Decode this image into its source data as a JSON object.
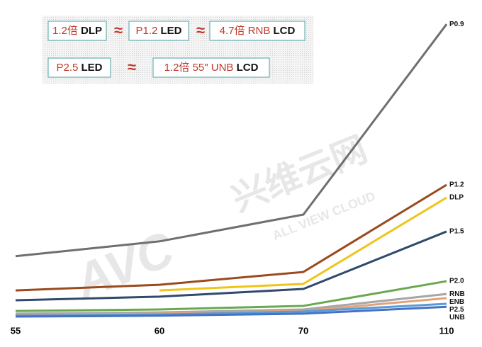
{
  "chart_data": {
    "type": "line",
    "categories": [
      "55",
      "60",
      "70",
      "110"
    ],
    "ylim": [
      0,
      100
    ],
    "series": [
      {
        "name": "P0.9",
        "color": "#6f6f6f",
        "values": [
          21,
          26,
          35,
          99
        ]
      },
      {
        "name": "P1.2",
        "color": "#9a4a1c",
        "values": [
          9.5,
          11.4,
          15.7,
          45
        ]
      },
      {
        "name": "DLP",
        "color": "#f0c419",
        "values": [
          null,
          9.5,
          11.7,
          40.7
        ]
      },
      {
        "name": "P1.5",
        "color": "#2f4a6d",
        "values": [
          6.2,
          7.4,
          10,
          29.3
        ]
      },
      {
        "name": "P2.0",
        "color": "#6aa84f",
        "values": [
          2.6,
          3.1,
          4.3,
          12.6
        ]
      },
      {
        "name": "RNB",
        "color": "#a6a6a6",
        "values": [
          1.7,
          2.1,
          3.1,
          8.3
        ]
      },
      {
        "name": "ENB",
        "color": "#e3a27a",
        "values": [
          1.2,
          1.7,
          2.6,
          6.9
        ]
      },
      {
        "name": "P2.5",
        "color": "#5b9bd5",
        "values": [
          1,
          1.4,
          2.4,
          5
        ]
      },
      {
        "name": "UNB",
        "color": "#4472c4",
        "values": [
          0.7,
          1,
          1.7,
          4
        ]
      }
    ],
    "annotations": [
      {
        "red": "1.2倍",
        "black": "DLP"
      },
      {
        "red": "P1.2",
        "black": "LED"
      },
      {
        "red": "4.7倍 RNB",
        "black": "LCD"
      },
      {
        "red": "P2.5",
        "black": "LED"
      },
      {
        "red": "1.2倍 55\" UNB",
        "black": "LCD"
      }
    ],
    "approx_signs": [
      "≈",
      "≈",
      "≈"
    ],
    "watermark": {
      "logo": "AVC",
      "chinese": "兴维云网",
      "english": "ALL VIEW CLOUD"
    }
  }
}
